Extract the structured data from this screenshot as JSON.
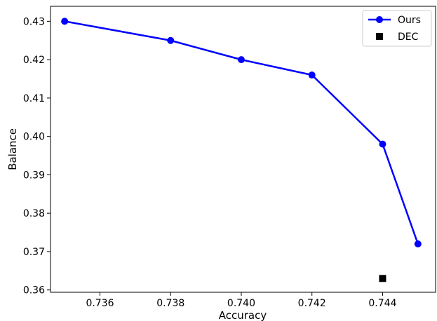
{
  "chart_data": {
    "type": "line",
    "xlabel": "Accuracy",
    "ylabel": "Balance",
    "xlim": [
      0.7346,
      0.7455
    ],
    "ylim": [
      0.3594,
      0.4339
    ],
    "xticks": [
      "0.736",
      "0.738",
      "0.740",
      "0.742",
      "0.744"
    ],
    "xtick_values": [
      0.736,
      0.738,
      0.74,
      0.742,
      0.744
    ],
    "yticks": [
      "0.36",
      "0.37",
      "0.38",
      "0.39",
      "0.40",
      "0.41",
      "0.42",
      "0.43"
    ],
    "ytick_values": [
      0.36,
      0.37,
      0.38,
      0.39,
      0.4,
      0.41,
      0.42,
      0.43
    ],
    "grid": false,
    "legend_position": "top-right",
    "series": [
      {
        "name": "Ours",
        "type": "line",
        "marker": "circle",
        "color": "#0000ff",
        "x": [
          0.735,
          0.738,
          0.74,
          0.742,
          0.744,
          0.745
        ],
        "y": [
          0.43,
          0.425,
          0.42,
          0.416,
          0.398,
          0.372
        ]
      },
      {
        "name": "DEC",
        "type": "scatter",
        "marker": "square",
        "color": "#000000",
        "x": [
          0.744
        ],
        "y": [
          0.363
        ]
      }
    ]
  }
}
